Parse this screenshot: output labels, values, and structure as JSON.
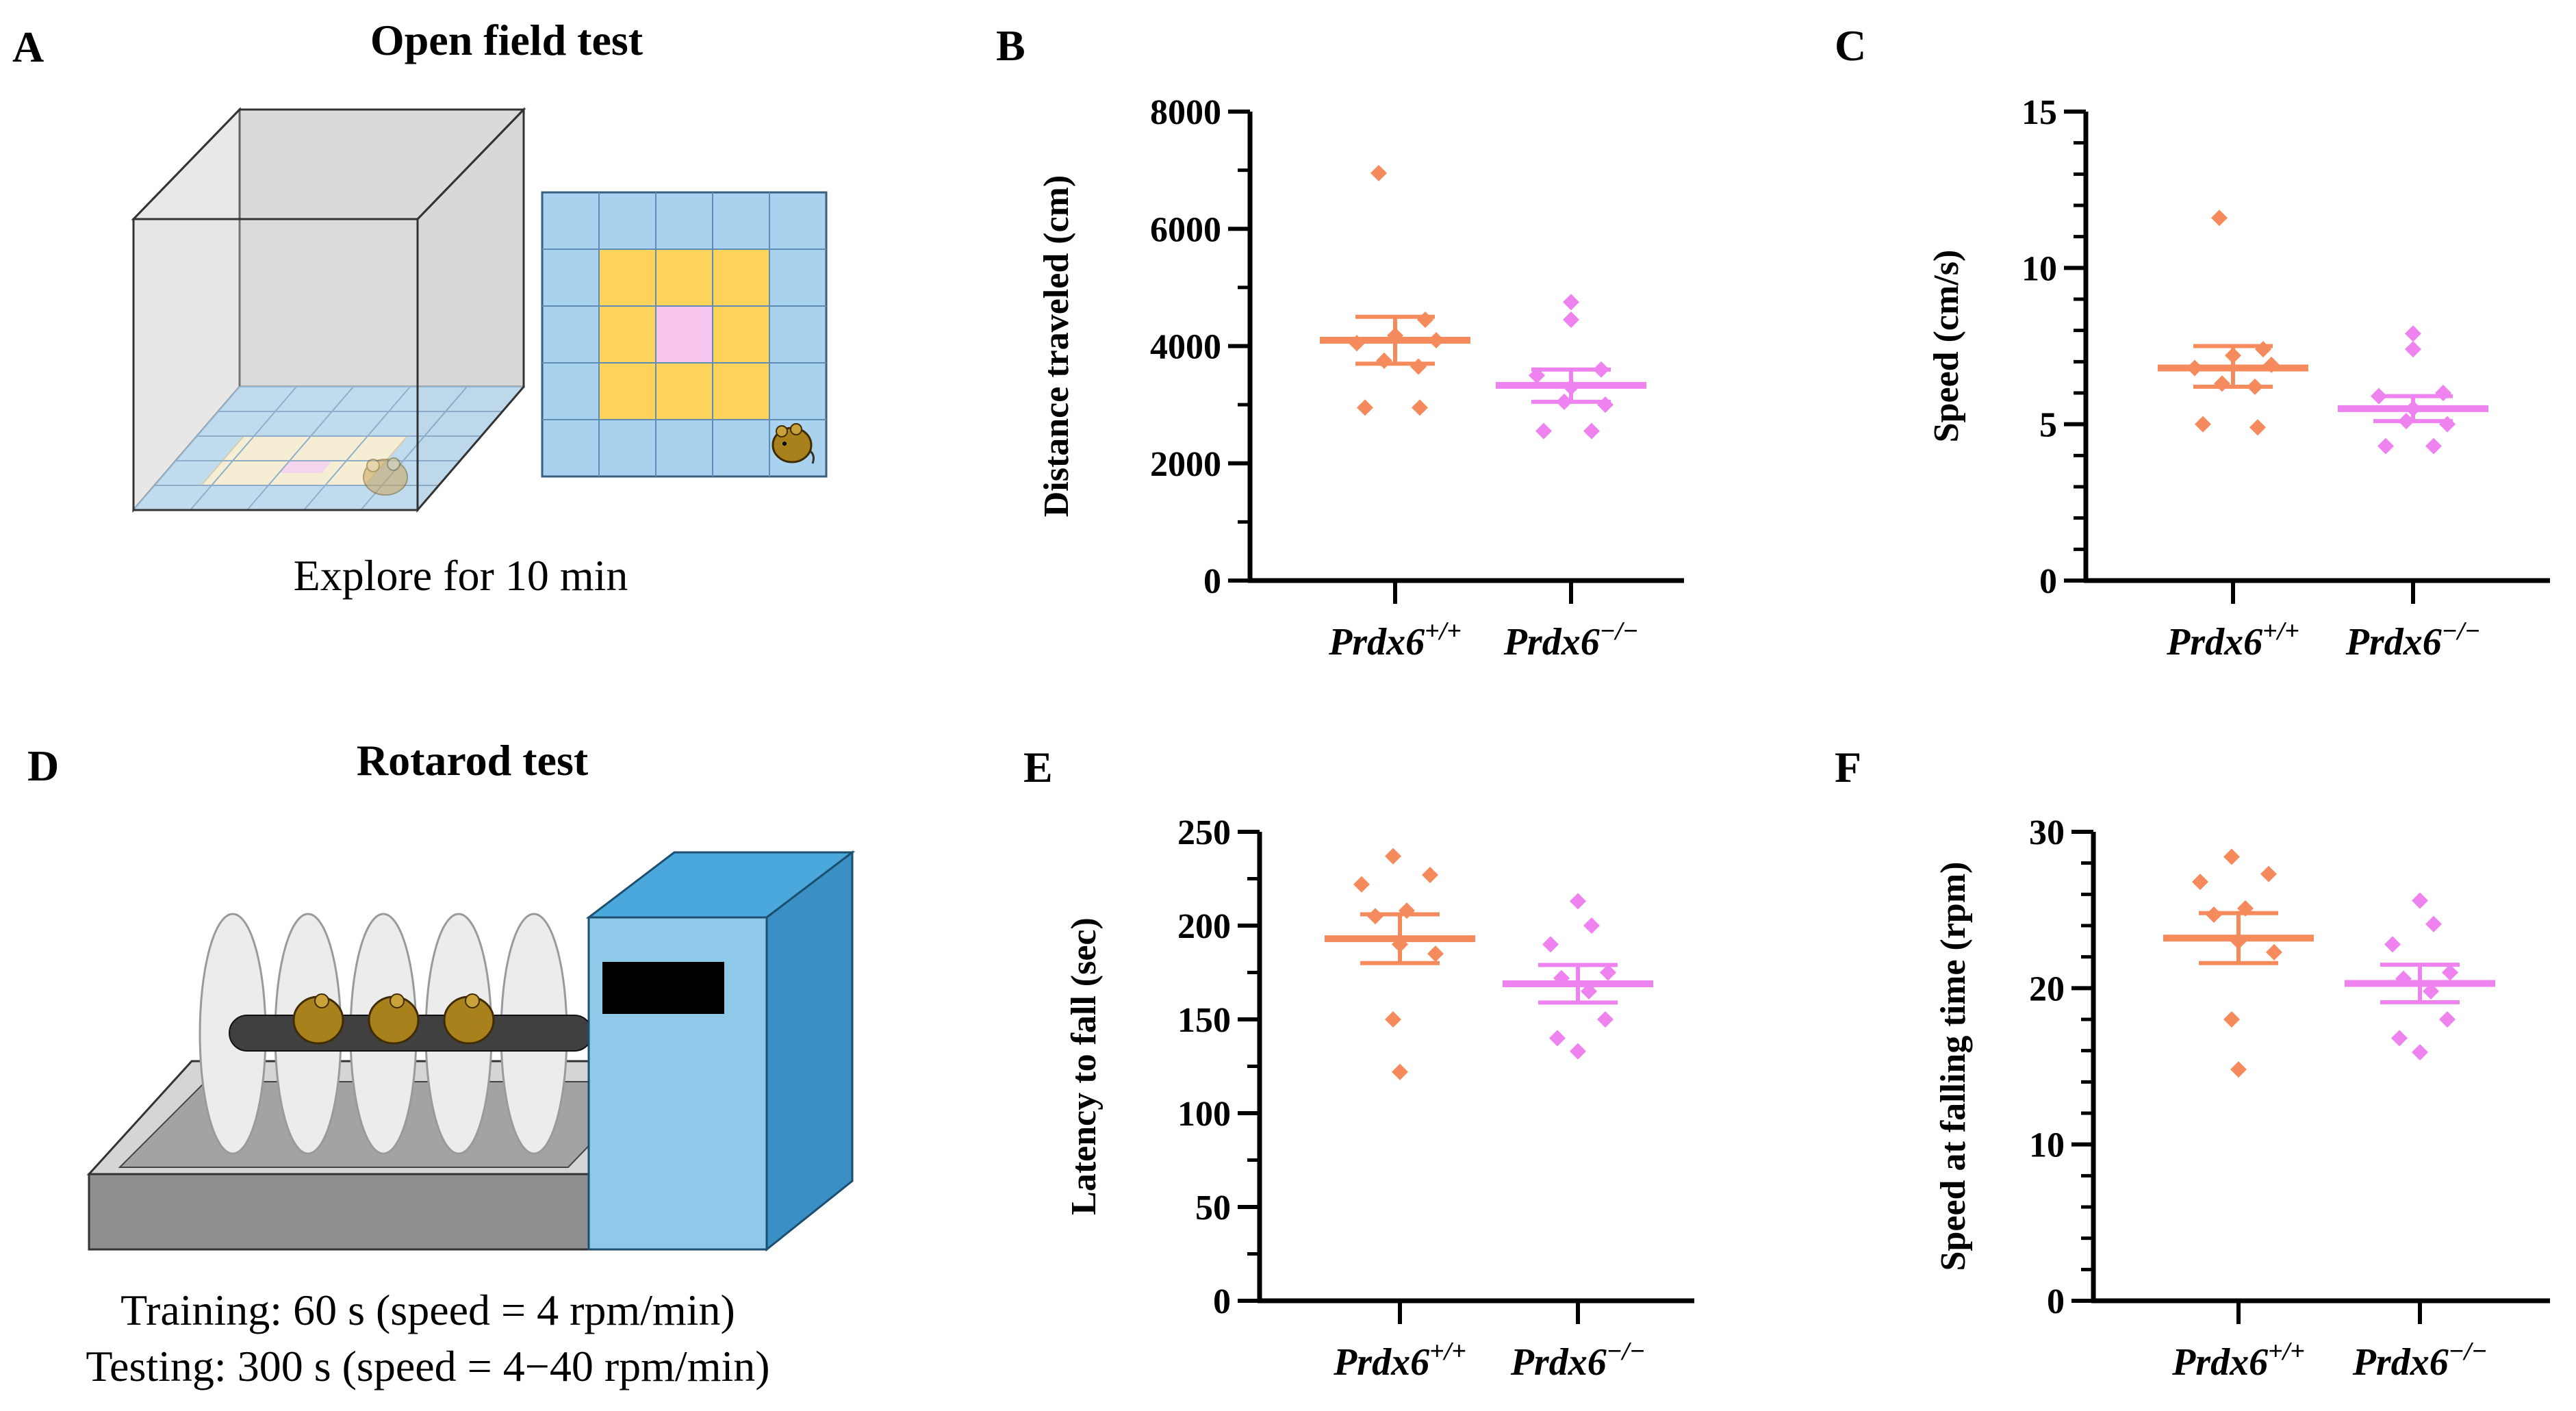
{
  "panels": {
    "A": {
      "letter": "A",
      "title": "Open field test",
      "caption": "Explore for 10 min"
    },
    "D": {
      "letter": "D",
      "title": "Rotarod test",
      "caption_lines": [
        "Training: 60 s (speed = 4 rpm/min)",
        "Testing: 300 s (speed = 4−40 rpm/min)"
      ]
    }
  },
  "colors": {
    "wt": "#f58b5c",
    "ko": "#ee82ee",
    "axis": "#000000",
    "box_blue": "#a9d2ee",
    "yellow": "#fed35c",
    "pink": "#f9c6ef",
    "rotarod_blue": "#8ec9ea"
  },
  "groups": [
    {
      "base": "Prdx6",
      "sup": "+/+"
    },
    {
      "base": "Prdx6",
      "sup": "−/−"
    }
  ],
  "chart_data": [
    {
      "panel": "B",
      "type": "scatter",
      "ylabel": "Distance traveled (cm)",
      "ylim": [
        0,
        8000
      ],
      "yticks": [
        0,
        2000,
        4000,
        6000,
        8000
      ],
      "minor_per_major": 2,
      "categories": [
        "Prdx6+/+",
        "Prdx6−/−"
      ],
      "series": [
        {
          "name": "Prdx6+/+",
          "points": [
            [
              -0.12,
              6950
            ],
            [
              0.22,
              4450
            ],
            [
              0.0,
              4180
            ],
            [
              0.3,
              4100
            ],
            [
              -0.28,
              4050
            ],
            [
              -0.08,
              3750
            ],
            [
              0.17,
              3650
            ],
            [
              -0.22,
              2950
            ],
            [
              0.18,
              2950
            ]
          ],
          "mean": 4100,
          "sem_low": 3700,
          "sem_high": 4500
        },
        {
          "name": "Prdx6−/−",
          "points": [
            [
              0.0,
              4750
            ],
            [
              0.0,
              4450
            ],
            [
              0.22,
              3600
            ],
            [
              -0.25,
              3500
            ],
            [
              0.0,
              3300
            ],
            [
              0.25,
              3000
            ],
            [
              -0.05,
              3050
            ],
            [
              -0.2,
              2550
            ],
            [
              0.15,
              2550
            ]
          ],
          "mean": 3330,
          "sem_low": 3050,
          "sem_high": 3600
        }
      ]
    },
    {
      "panel": "C",
      "type": "scatter",
      "ylabel": "Speed (cm/s)",
      "ylim": [
        0,
        15
      ],
      "yticks": [
        0,
        5,
        10,
        15
      ],
      "minor_per_major": 5,
      "categories": [
        "Prdx6+/+",
        "Prdx6−/−"
      ],
      "series": [
        {
          "name": "Prdx6+/+",
          "points": [
            [
              -0.1,
              11.6
            ],
            [
              0.22,
              7.4
            ],
            [
              0.0,
              7.2
            ],
            [
              0.28,
              6.9
            ],
            [
              -0.28,
              6.8
            ],
            [
              -0.08,
              6.3
            ],
            [
              0.16,
              6.2
            ],
            [
              -0.22,
              5.0
            ],
            [
              0.18,
              4.9
            ]
          ],
          "mean": 6.8,
          "sem_low": 6.2,
          "sem_high": 7.5
        },
        {
          "name": "Prdx6−/−",
          "points": [
            [
              0.0,
              7.9
            ],
            [
              0.0,
              7.4
            ],
            [
              0.22,
              6.0
            ],
            [
              -0.25,
              5.9
            ],
            [
              0.0,
              5.5
            ],
            [
              0.25,
              5.0
            ],
            [
              -0.05,
              5.1
            ],
            [
              -0.2,
              4.3
            ],
            [
              0.15,
              4.3
            ]
          ],
          "mean": 5.5,
          "sem_low": 5.1,
          "sem_high": 5.9
        }
      ]
    },
    {
      "panel": "E",
      "type": "scatter",
      "ylabel": "Latency to fall (sec)",
      "ylim": [
        0,
        250
      ],
      "yticks": [
        0,
        50,
        100,
        150,
        200,
        250
      ],
      "minor_per_major": 2,
      "categories": [
        "Prdx6+/+",
        "Prdx6−/−"
      ],
      "series": [
        {
          "name": "Prdx6+/+",
          "points": [
            [
              -0.05,
              237
            ],
            [
              0.22,
              227
            ],
            [
              -0.28,
              222
            ],
            [
              0.05,
              208
            ],
            [
              -0.18,
              205
            ],
            [
              0.0,
              190
            ],
            [
              0.26,
              185
            ],
            [
              -0.05,
              150
            ],
            [
              0.0,
              122
            ]
          ],
          "mean": 193,
          "sem_low": 180,
          "sem_high": 206
        },
        {
          "name": "Prdx6−/−",
          "points": [
            [
              0.0,
              213
            ],
            [
              0.1,
              200
            ],
            [
              -0.2,
              190
            ],
            [
              0.22,
              175
            ],
            [
              -0.12,
              172
            ],
            [
              0.08,
              165
            ],
            [
              0.2,
              150
            ],
            [
              -0.15,
              140
            ],
            [
              0.0,
              133
            ]
          ],
          "mean": 169,
          "sem_low": 159,
          "sem_high": 179
        }
      ]
    },
    {
      "panel": "F",
      "type": "scatter",
      "ylabel": "Speed at falling time (rpm)",
      "ylim": [
        0,
        30
      ],
      "yticks": [
        0,
        10,
        20,
        30
      ],
      "minor_per_major": 5,
      "categories": [
        "Prdx6+/+",
        "Prdx6−/−"
      ],
      "series": [
        {
          "name": "Prdx6+/+",
          "points": [
            [
              -0.05,
              28.4
            ],
            [
              0.22,
              27.3
            ],
            [
              -0.28,
              26.8
            ],
            [
              0.05,
              25.1
            ],
            [
              -0.18,
              24.7
            ],
            [
              0.0,
              23.0
            ],
            [
              0.26,
              22.3
            ],
            [
              -0.05,
              18.0
            ],
            [
              0.0,
              14.8
            ]
          ],
          "mean": 23.2,
          "sem_low": 21.6,
          "sem_high": 24.8
        },
        {
          "name": "Prdx6−/−",
          "points": [
            [
              0.0,
              25.6
            ],
            [
              0.1,
              24.1
            ],
            [
              -0.2,
              22.8
            ],
            [
              0.22,
              21.0
            ],
            [
              -0.12,
              20.6
            ],
            [
              0.08,
              19.8
            ],
            [
              0.2,
              18.0
            ],
            [
              -0.15,
              16.8
            ],
            [
              0.0,
              15.9
            ]
          ],
          "mean": 20.3,
          "sem_low": 19.1,
          "sem_high": 21.5
        }
      ]
    }
  ]
}
